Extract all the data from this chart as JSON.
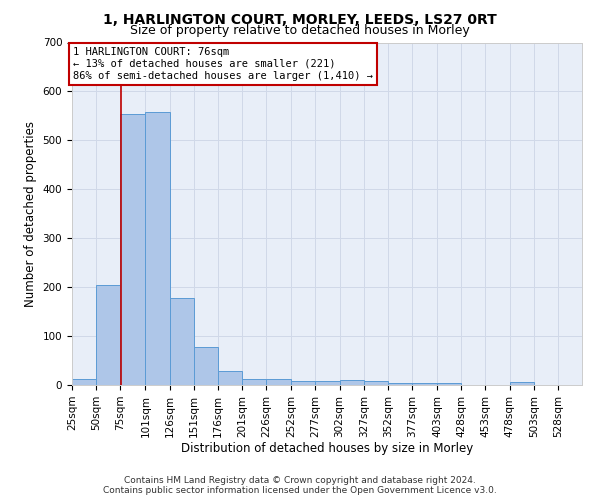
{
  "title": "1, HARLINGTON COURT, MORLEY, LEEDS, LS27 0RT",
  "subtitle": "Size of property relative to detached houses in Morley",
  "xlabel": "Distribution of detached houses by size in Morley",
  "ylabel": "Number of detached properties",
  "footer_line1": "Contains HM Land Registry data © Crown copyright and database right 2024.",
  "footer_line2": "Contains public sector information licensed under the Open Government Licence v3.0.",
  "annotation_title": "1 HARLINGTON COURT: 76sqm",
  "annotation_line1": "← 13% of detached houses are smaller (221)",
  "annotation_line2": "86% of semi-detached houses are larger (1,410) →",
  "property_sqm": 76,
  "bar_left_edges": [
    25,
    50,
    75,
    101,
    126,
    151,
    176,
    201,
    226,
    252,
    277,
    302,
    327,
    352,
    377,
    403,
    428,
    453,
    478,
    503,
    528
  ],
  "bar_widths": [
    25,
    25,
    26,
    25,
    25,
    25,
    25,
    25,
    26,
    25,
    25,
    25,
    25,
    25,
    26,
    25,
    25,
    25,
    25,
    25,
    25
  ],
  "bar_heights": [
    13,
    205,
    553,
    557,
    178,
    78,
    28,
    12,
    12,
    8,
    8,
    10,
    8,
    5,
    5,
    5,
    0,
    0,
    6,
    0,
    0
  ],
  "bar_color": "#aec6e8",
  "bar_edge_color": "#5b9bd5",
  "vline_color": "#c00000",
  "vline_x": 76,
  "ylim": [
    0,
    700
  ],
  "yticks": [
    0,
    100,
    200,
    300,
    400,
    500,
    600,
    700
  ],
  "xtick_labels": [
    "25sqm",
    "50sqm",
    "75sqm",
    "101sqm",
    "126sqm",
    "151sqm",
    "176sqm",
    "201sqm",
    "226sqm",
    "252sqm",
    "277sqm",
    "302sqm",
    "327sqm",
    "352sqm",
    "377sqm",
    "403sqm",
    "428sqm",
    "453sqm",
    "478sqm",
    "503sqm",
    "528sqm"
  ],
  "grid_color": "#d0d8e8",
  "bg_color": "#e8eef8",
  "annotation_box_color": "#ffffff",
  "annotation_box_edge": "#c00000",
  "title_fontsize": 10,
  "subtitle_fontsize": 9,
  "axis_label_fontsize": 8.5,
  "tick_fontsize": 7.5,
  "annotation_fontsize": 7.5,
  "footer_fontsize": 6.5
}
